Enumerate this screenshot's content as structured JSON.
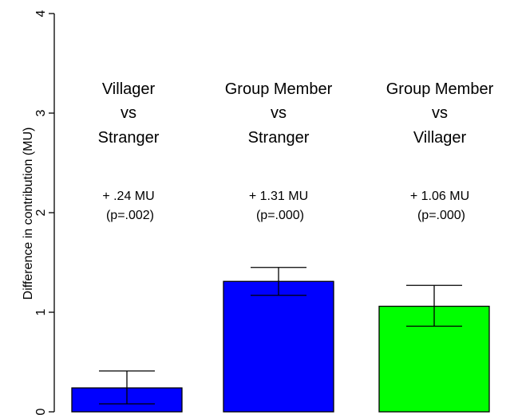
{
  "chart_data": {
    "type": "bar",
    "ylabel": "Difference in contribution (MU)",
    "ylim": [
      0,
      4
    ],
    "yticks": [
      "0",
      "1",
      "2",
      "3",
      "4"
    ],
    "grid": false,
    "bars": [
      {
        "title_lines": [
          "Villager",
          "vs",
          "Stranger"
        ],
        "effect": "+ .24 MU",
        "p_value": "(p=.002)",
        "value": 0.24,
        "error_low": 0.08,
        "error_high": 0.41,
        "color": "#0000ff"
      },
      {
        "title_lines": [
          "Group Member",
          "vs",
          "Stranger"
        ],
        "effect": "+ 1.31 MU",
        "p_value": "(p=.000)",
        "value": 1.31,
        "error_low": 1.17,
        "error_high": 1.45,
        "color": "#0000ff"
      },
      {
        "title_lines": [
          "Group Member",
          "vs",
          "Villager"
        ],
        "effect": "+ 1.06 MU",
        "p_value": "(p=.000)",
        "value": 1.06,
        "error_low": 0.86,
        "error_high": 1.27,
        "color": "#00ff00"
      }
    ]
  }
}
